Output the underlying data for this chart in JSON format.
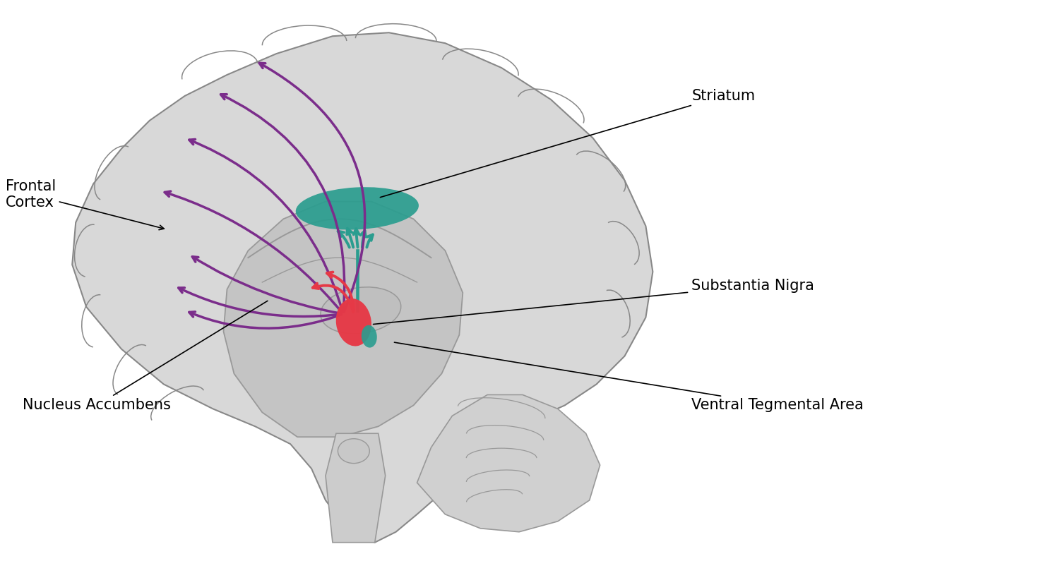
{
  "background_color": "#ffffff",
  "brain_fill_color": "#d8d8d8",
  "brain_outline_color": "#888888",
  "inner_fill_color": "#c4c4c4",
  "inner_outline_color": "#999999",
  "cerebellum_fill_color": "#d0d0d0",
  "striatum_color": "#2a9d8f",
  "substantia_nigra_color": "#e63946",
  "vta_color": "#2a9d8f",
  "purple_pathway_color": "#7b2d8b",
  "teal_pathway_color": "#2a9d8f",
  "red_pathway_color": "#e63946",
  "label_color": "#000000",
  "labels": {
    "striatum": "Striatum",
    "frontal_cortex": "Frontal\nCortex",
    "substantia_nigra": "Substantia Nigra",
    "nucleus_accumbens": "Nucleus Accumbens",
    "ventral_tegmental": "Ventral Tegmental Area"
  },
  "label_fontsize": 15,
  "figsize": [
    14.84,
    7.95
  ],
  "dpi": 100
}
